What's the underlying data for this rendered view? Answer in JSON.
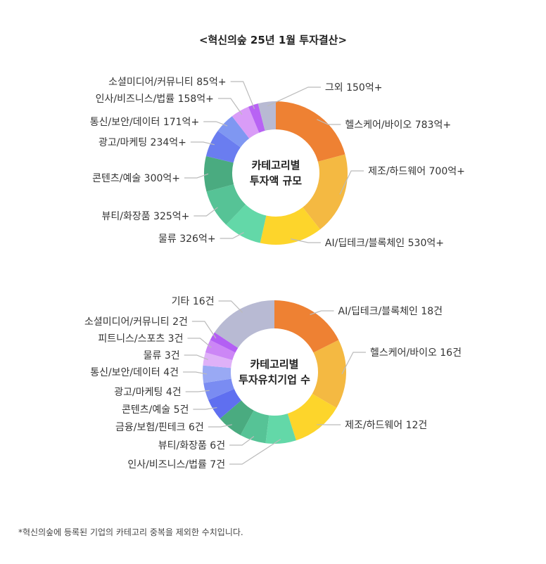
{
  "title": "<혁신의숲 25년 1월 투자결산>",
  "footnote": "*혁신의숲에 등록된 기업의 카테고리 중복을 제외한 수치입니다.",
  "chart_data": [
    {
      "type": "pie",
      "center_label": [
        "카테고리별",
        "투자액 규모"
      ],
      "unit": "억",
      "slices": [
        {
          "label": "헬스케어/바이오 783억+",
          "value": 783,
          "color": "#ee8133"
        },
        {
          "label": "제조/하드웨어 700억+",
          "value": 700,
          "color": "#f4b942"
        },
        {
          "label": "AI/딥테크/블록체인 530억+",
          "value": 530,
          "color": "#fdd52b"
        },
        {
          "label": "물류 326억+",
          "value": 326,
          "color": "#63d8a8"
        },
        {
          "label": "뷰티/화장품 325억+",
          "value": 325,
          "color": "#56c396"
        },
        {
          "label": "콘텐츠/예술 300억+",
          "value": 300,
          "color": "#4aab80"
        },
        {
          "label": "광고/마케팅 234억+",
          "value": 234,
          "color": "#6a7df0"
        },
        {
          "label": "통신/보안/데이터 171억+",
          "value": 171,
          "color": "#7f97f2"
        },
        {
          "label": "인사/비즈니스/법률 158억+",
          "value": 158,
          "color": "#d99cf7"
        },
        {
          "label": "소셜미디어/커뮤니티 85억+",
          "value": 85,
          "color": "#b863f4"
        },
        {
          "label": "그외 150억+",
          "value": 150,
          "color": "#b8bad3"
        }
      ]
    },
    {
      "type": "pie",
      "center_label": [
        "카테고리별",
        "투자유치기업 수"
      ],
      "unit": "건",
      "slices": [
        {
          "label": "AI/딥테크/블록체인 18건",
          "value": 18,
          "color": "#ee8133"
        },
        {
          "label": "헬스케어/바이오 16건",
          "value": 16,
          "color": "#f4b942"
        },
        {
          "label": "제조/하드웨어 12건",
          "value": 12,
          "color": "#fdd52b"
        },
        {
          "label": "인사/비즈니스/법률 7건",
          "value": 7,
          "color": "#63d8a8"
        },
        {
          "label": "뷰티/화장품 6건",
          "value": 6,
          "color": "#56c396"
        },
        {
          "label": "금융/보험/핀테크 6건",
          "value": 6,
          "color": "#4aab80"
        },
        {
          "label": "콘텐츠/예술 5건",
          "value": 5,
          "color": "#5f6ff0"
        },
        {
          "label": "광고/마케팅 4건",
          "value": 4,
          "color": "#7a8cf2"
        },
        {
          "label": "통신/보안/데이터 4건",
          "value": 4,
          "color": "#99a9f4"
        },
        {
          "label": "물류 3건",
          "value": 3,
          "color": "#dfb1f8"
        },
        {
          "label": "피트니스/스포츠 3건",
          "value": 3,
          "color": "#cc86f6"
        },
        {
          "label": "소셜미디어/커뮤니티 2건",
          "value": 2,
          "color": "#b35ff4"
        },
        {
          "label": "기타 16건",
          "value": 16,
          "color": "#b8bad3"
        }
      ]
    }
  ]
}
